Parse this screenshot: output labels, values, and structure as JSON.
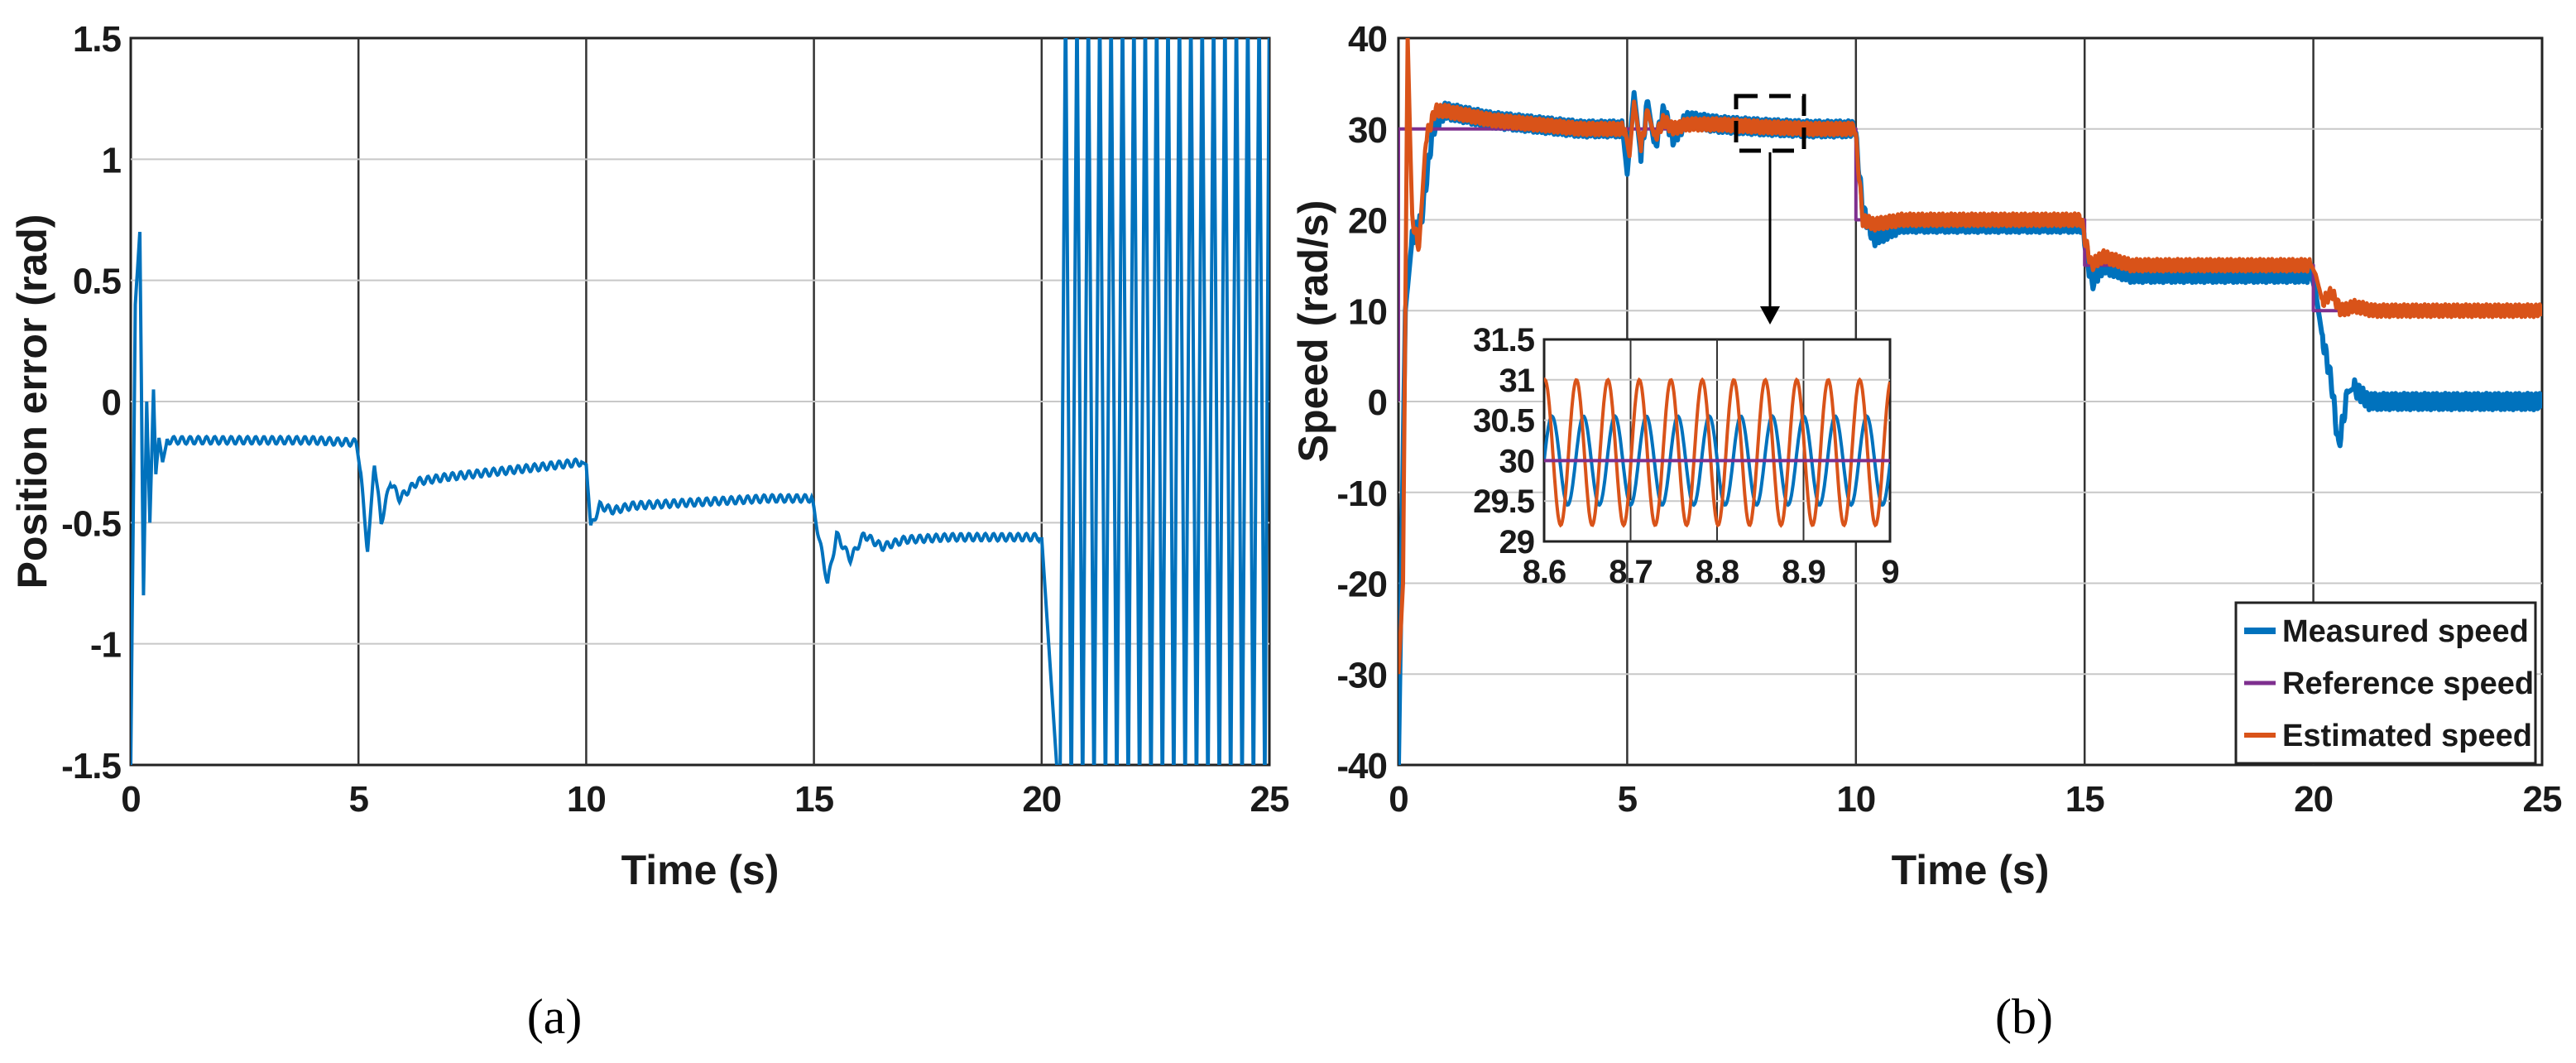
{
  "figure": {
    "captions": [
      "(a)",
      "(b)"
    ]
  },
  "chart_data": [
    {
      "type": "line",
      "panel": "a",
      "title": "",
      "xlabel": "Time (s)",
      "ylabel": "Position error (rad)",
      "xlim": [
        0,
        25
      ],
      "ylim": [
        -1.5,
        1.5
      ],
      "xticks": [
        "0",
        "5",
        "10",
        "15",
        "20",
        "25"
      ],
      "yticks": [
        "-1.5",
        "-1",
        "-0.5",
        "0",
        "0.5",
        "1",
        "1.5"
      ],
      "grid": true,
      "series": [
        {
          "color": "#0072BD",
          "x": [
            0,
            0.1,
            0.2,
            0.28,
            0.35,
            0.42,
            0.5,
            0.55,
            0.62,
            0.7,
            0.8,
            1.0,
            2.0,
            3.0,
            4.0,
            4.95,
            5.05,
            5.2,
            5.35,
            5.5,
            5.7,
            5.9,
            6.3,
            7.0,
            8.0,
            9.0,
            9.9,
            10.0,
            10.1,
            10.3,
            10.6,
            11.0,
            12.0,
            13.0,
            14.0,
            14.95,
            15.1,
            15.3,
            15.5,
            15.8,
            16.1,
            16.5,
            17.0,
            18.0,
            19.0,
            19.95
          ],
          "y": [
            -1.5,
            0.4,
            0.7,
            -0.8,
            0.0,
            -0.5,
            0.05,
            -0.3,
            -0.15,
            -0.25,
            -0.16,
            -0.16,
            -0.16,
            -0.16,
            -0.16,
            -0.17,
            -0.3,
            -0.62,
            -0.25,
            -0.5,
            -0.33,
            -0.4,
            -0.33,
            -0.31,
            -0.29,
            -0.27,
            -0.25,
            -0.26,
            -0.52,
            -0.43,
            -0.45,
            -0.43,
            -0.42,
            -0.41,
            -0.4,
            -0.4,
            -0.55,
            -0.75,
            -0.55,
            -0.65,
            -0.55,
            -0.6,
            -0.57,
            -0.56,
            -0.56,
            -0.56
          ]
        }
      ],
      "unstable_region": {
        "x_start": 20,
        "x_end": 25,
        "crossings_per_second": 4,
        "note": "oscillates beyond the axis limits"
      }
    },
    {
      "type": "line",
      "panel": "b",
      "title": "",
      "xlabel": "Time (s)",
      "ylabel": "Speed (rad/s)",
      "xlim": [
        0,
        25
      ],
      "ylim": [
        -40,
        40
      ],
      "xticks": [
        "0",
        "5",
        "10",
        "15",
        "20",
        "25"
      ],
      "yticks": [
        "-40",
        "-30",
        "-20",
        "-10",
        "0",
        "10",
        "20",
        "30",
        "40"
      ],
      "grid": true,
      "legend": {
        "position": "bottom-right"
      },
      "series": [
        {
          "name": "Measured speed",
          "color": "#0072BD",
          "x": [
            0,
            0.15,
            0.3,
            0.5,
            0.75,
            1.0,
            1.5,
            2.0,
            3.0,
            4.0,
            4.9,
            5.0,
            5.05,
            5.15,
            5.3,
            5.45,
            5.6,
            5.8,
            6.0,
            6.3,
            7.0,
            8.0,
            9.0,
            9.95,
            10.0,
            10.15,
            10.4,
            11.0,
            12.0,
            13.0,
            14.0,
            14.95,
            15.0,
            15.15,
            15.4,
            16.0,
            17.0,
            18.0,
            19.0,
            19.95,
            20.05,
            20.2,
            20.4,
            20.55,
            20.75,
            20.9,
            21.2,
            22.0,
            23.0,
            24.0,
            25.0
          ],
          "y": [
            -40,
            10,
            18,
            20,
            30,
            32,
            31.5,
            31,
            30.5,
            30,
            30,
            25,
            28,
            34,
            27,
            33,
            28,
            32,
            29,
            31,
            30.5,
            30.2,
            30,
            30,
            29,
            21,
            18,
            19.5,
            19.5,
            19.5,
            19.5,
            19.5,
            18,
            13,
            15,
            14,
            14,
            14,
            14,
            14,
            12,
            7,
            2,
            -5,
            1,
            1.5,
            0,
            0,
            0,
            0,
            0
          ]
        },
        {
          "name": "Reference speed",
          "color": "#7E2F8E",
          "x": [
            0,
            0,
            10,
            10,
            15,
            15,
            20,
            20,
            25
          ],
          "y": [
            0,
            30,
            30,
            20,
            20,
            15,
            15,
            10,
            10
          ]
        },
        {
          "name": "Estimated speed",
          "color": "#D95319",
          "x": [
            0,
            0.1,
            0.2,
            0.3,
            0.45,
            0.6,
            0.8,
            1.0,
            1.5,
            2.0,
            3.0,
            4.0,
            4.95,
            5.05,
            5.15,
            5.3,
            5.45,
            5.6,
            5.8,
            6.0,
            6.3,
            7.0,
            8.0,
            9.0,
            9.95,
            10.0,
            10.15,
            10.4,
            11.0,
            12.0,
            13.0,
            14.0,
            14.95,
            15.0,
            15.15,
            15.4,
            16.0,
            17.0,
            18.0,
            19.0,
            19.95,
            20.05,
            20.2,
            20.4,
            20.6,
            20.9,
            21.3,
            22.0,
            23.0,
            24.0,
            25.0
          ],
          "y": [
            -30,
            -20,
            40,
            20,
            17,
            29,
            32,
            32,
            31.5,
            31,
            30.5,
            30,
            30,
            27,
            33,
            28,
            32,
            29,
            31,
            30,
            30.5,
            30.5,
            30.2,
            30,
            30,
            29,
            20,
            19.5,
            20,
            20,
            20,
            20,
            20,
            18,
            15,
            16,
            15,
            15,
            15,
            15,
            15,
            14,
            11,
            12,
            10,
            10.5,
            10,
            10,
            10,
            10,
            10
          ]
        }
      ],
      "inset": {
        "xlim": [
          8.6,
          9
        ],
        "ylim": [
          29,
          31.5
        ],
        "xticks": [
          "8.6",
          "8.7",
          "8.8",
          "8.9",
          "9"
        ],
        "yticks": [
          "29",
          "29.5",
          "30",
          "30.5",
          "31",
          "31.5"
        ],
        "reference_value": 30,
        "measured": {
          "color": "#0072BD",
          "mean": 30,
          "amplitude": 0.55,
          "period": 0.0364,
          "phase": 0
        },
        "estimated": {
          "color": "#D95319",
          "mean": 30.1,
          "amplitude": 0.9,
          "period": 0.0364,
          "phase": 1.4
        }
      }
    }
  ]
}
